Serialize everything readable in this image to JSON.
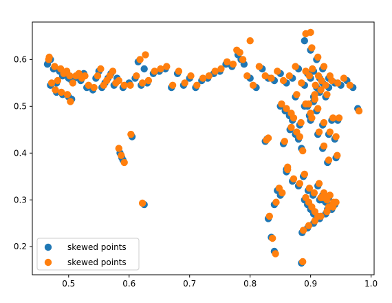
{
  "chart_data": {
    "type": "scatter",
    "title": "",
    "xlabel": "",
    "ylabel": "",
    "xlim": [
      0.44,
      1.005
    ],
    "ylim": [
      0.14,
      0.68
    ],
    "x_ticks": [
      0.5,
      0.6,
      0.7,
      0.8,
      0.9,
      1.0
    ],
    "x_tick_labels": [
      "0.5",
      "0.6",
      "0.7",
      "0.8",
      "0.9",
      "1.0"
    ],
    "y_ticks": [
      0.2,
      0.3,
      0.4,
      0.5,
      0.6
    ],
    "y_tick_labels": [
      "0.2",
      "0.3",
      "0.4",
      "0.5",
      "0.6"
    ],
    "grid": false,
    "legend_position": "lower-left",
    "series": [
      {
        "name": "skewed points",
        "color": "#1f77b4",
        "x": [
          0.465,
          0.47,
          0.475,
          0.48,
          0.485,
          0.49,
          0.495,
          0.5,
          0.505,
          0.51,
          0.515,
          0.52,
          0.525,
          0.53,
          0.54,
          0.545,
          0.55,
          0.555,
          0.56,
          0.565,
          0.57,
          0.575,
          0.58,
          0.59,
          0.6,
          0.61,
          0.615,
          0.62,
          0.625,
          0.63,
          0.64,
          0.65,
          0.66,
          0.67,
          0.68,
          0.69,
          0.7,
          0.71,
          0.72,
          0.73,
          0.74,
          0.75,
          0.76,
          0.77,
          0.78,
          0.785,
          0.79,
          0.8,
          0.81,
          0.82,
          0.83,
          0.84,
          0.85,
          0.86,
          0.87,
          0.88,
          0.89,
          0.895,
          0.9,
          0.905,
          0.91,
          0.915,
          0.92,
          0.93,
          0.94,
          0.95,
          0.96,
          0.97,
          0.978,
          0.47,
          0.48,
          0.49,
          0.5,
          0.505,
          0.585,
          0.588,
          0.59,
          0.605,
          0.625,
          0.825,
          0.83,
          0.835,
          0.84,
          0.845,
          0.85,
          0.855,
          0.86,
          0.865,
          0.87,
          0.875,
          0.88,
          0.885,
          0.89,
          0.895,
          0.9,
          0.905,
          0.91,
          0.915,
          0.92,
          0.925,
          0.93,
          0.935,
          0.94,
          0.945,
          0.85,
          0.858,
          0.866,
          0.875,
          0.882,
          0.89,
          0.898,
          0.905,
          0.912,
          0.92,
          0.928,
          0.935,
          0.942,
          0.86,
          0.87,
          0.88,
          0.888,
          0.896,
          0.904,
          0.912,
          0.92,
          0.928,
          0.936,
          0.886,
          0.895,
          0.905,
          0.915,
          0.925,
          0.935,
          0.89,
          0.9,
          0.91,
          0.92,
          0.93,
          0.895,
          0.905,
          0.915,
          0.925,
          0.9,
          0.91,
          0.92,
          0.93,
          0.94,
          0.885,
          0.84,
          0.828
        ],
        "y": [
          0.59,
          0.545,
          0.58,
          0.55,
          0.575,
          0.565,
          0.57,
          0.56,
          0.555,
          0.56,
          0.565,
          0.555,
          0.57,
          0.54,
          0.535,
          0.56,
          0.575,
          0.54,
          0.55,
          0.56,
          0.57,
          0.545,
          0.56,
          0.54,
          0.55,
          0.56,
          0.595,
          0.545,
          0.58,
          0.55,
          0.57,
          0.575,
          0.58,
          0.54,
          0.57,
          0.545,
          0.56,
          0.54,
          0.555,
          0.56,
          0.57,
          0.575,
          0.59,
          0.585,
          0.61,
          0.6,
          0.59,
          0.56,
          0.54,
          0.58,
          0.56,
          0.555,
          0.57,
          0.55,
          0.56,
          0.58,
          0.545,
          0.57,
          0.56,
          0.575,
          0.54,
          0.56,
          0.55,
          0.54,
          0.55,
          0.545,
          0.555,
          0.54,
          0.495,
          0.6,
          0.53,
          0.525,
          0.52,
          0.515,
          0.4,
          0.39,
          0.385,
          0.435,
          0.29,
          0.425,
          0.26,
          0.22,
          0.19,
          0.32,
          0.31,
          0.42,
          0.365,
          0.48,
          0.47,
          0.44,
          0.43,
          0.41,
          0.3,
          0.29,
          0.28,
          0.27,
          0.26,
          0.3,
          0.31,
          0.295,
          0.305,
          0.285,
          0.29,
          0.47,
          0.5,
          0.49,
          0.45,
          0.52,
          0.46,
          0.5,
          0.48,
          0.52,
          0.44,
          0.41,
          0.38,
          0.47,
          0.39,
          0.36,
          0.34,
          0.33,
          0.35,
          0.32,
          0.31,
          0.33,
          0.3,
          0.28,
          0.29,
          0.23,
          0.24,
          0.25,
          0.26,
          0.27,
          0.28,
          0.64,
          0.62,
          0.6,
          0.58,
          0.56,
          0.5,
          0.51,
          0.53,
          0.52,
          0.47,
          0.49,
          0.46,
          0.44,
          0.43,
          0.165,
          0.29,
          0.43
        ]
      },
      {
        "name": "skewed points",
        "color": "#ff7f0e",
        "x": [
          0.467,
          0.472,
          0.477,
          0.482,
          0.487,
          0.492,
          0.497,
          0.502,
          0.507,
          0.512,
          0.517,
          0.522,
          0.527,
          0.533,
          0.542,
          0.548,
          0.553,
          0.558,
          0.563,
          0.568,
          0.573,
          0.578,
          0.583,
          0.592,
          0.602,
          0.612,
          0.618,
          0.622,
          0.627,
          0.632,
          0.642,
          0.652,
          0.662,
          0.672,
          0.682,
          0.692,
          0.702,
          0.712,
          0.722,
          0.732,
          0.742,
          0.752,
          0.762,
          0.772,
          0.778,
          0.783,
          0.788,
          0.795,
          0.805,
          0.815,
          0.825,
          0.835,
          0.845,
          0.855,
          0.865,
          0.875,
          0.885,
          0.892,
          0.898,
          0.903,
          0.908,
          0.913,
          0.918,
          0.925,
          0.935,
          0.945,
          0.955,
          0.965,
          0.98,
          0.468,
          0.478,
          0.488,
          0.498,
          0.503,
          0.583,
          0.587,
          0.592,
          0.603,
          0.622,
          0.827,
          0.832,
          0.837,
          0.842,
          0.848,
          0.853,
          0.857,
          0.862,
          0.868,
          0.872,
          0.877,
          0.882,
          0.887,
          0.892,
          0.897,
          0.902,
          0.907,
          0.912,
          0.917,
          0.922,
          0.927,
          0.932,
          0.937,
          0.942,
          0.947,
          0.852,
          0.86,
          0.868,
          0.877,
          0.884,
          0.892,
          0.9,
          0.907,
          0.914,
          0.922,
          0.93,
          0.937,
          0.944,
          0.862,
          0.872,
          0.882,
          0.89,
          0.898,
          0.906,
          0.914,
          0.922,
          0.93,
          0.938,
          0.888,
          0.897,
          0.907,
          0.917,
          0.927,
          0.937,
          0.892,
          0.902,
          0.912,
          0.922,
          0.932,
          0.897,
          0.907,
          0.917,
          0.927,
          0.902,
          0.912,
          0.922,
          0.932,
          0.942,
          0.887,
          0.843,
          0.83,
          0.9,
          0.8
        ],
        "y": [
          0.6,
          0.55,
          0.585,
          0.555,
          0.58,
          0.57,
          0.575,
          0.565,
          0.55,
          0.565,
          0.57,
          0.56,
          0.565,
          0.545,
          0.54,
          0.565,
          0.58,
          0.545,
          0.555,
          0.565,
          0.575,
          0.55,
          0.555,
          0.545,
          0.545,
          0.565,
          0.6,
          0.55,
          0.61,
          0.555,
          0.575,
          0.58,
          0.585,
          0.545,
          0.575,
          0.55,
          0.565,
          0.545,
          0.56,
          0.565,
          0.575,
          0.58,
          0.595,
          0.59,
          0.62,
          0.615,
          0.6,
          0.565,
          0.545,
          0.585,
          0.565,
          0.56,
          0.575,
          0.555,
          0.565,
          0.585,
          0.55,
          0.575,
          0.565,
          0.58,
          0.545,
          0.565,
          0.555,
          0.545,
          0.555,
          0.55,
          0.56,
          0.545,
          0.49,
          0.605,
          0.535,
          0.53,
          0.525,
          0.51,
          0.41,
          0.395,
          0.38,
          0.44,
          0.293,
          0.428,
          0.265,
          0.218,
          0.185,
          0.325,
          0.315,
          0.425,
          0.37,
          0.485,
          0.475,
          0.445,
          0.435,
          0.405,
          0.305,
          0.295,
          0.285,
          0.275,
          0.265,
          0.305,
          0.315,
          0.3,
          0.31,
          0.29,
          0.295,
          0.475,
          0.505,
          0.495,
          0.455,
          0.525,
          0.465,
          0.505,
          0.485,
          0.525,
          0.445,
          0.415,
          0.385,
          0.475,
          0.395,
          0.365,
          0.345,
          0.335,
          0.355,
          0.325,
          0.315,
          0.335,
          0.305,
          0.285,
          0.295,
          0.235,
          0.245,
          0.255,
          0.265,
          0.275,
          0.285,
          0.655,
          0.625,
          0.605,
          0.585,
          0.565,
          0.505,
          0.515,
          0.535,
          0.525,
          0.475,
          0.495,
          0.465,
          0.445,
          0.435,
          0.168,
          0.295,
          0.432,
          0.658,
          0.64
        ]
      }
    ]
  }
}
